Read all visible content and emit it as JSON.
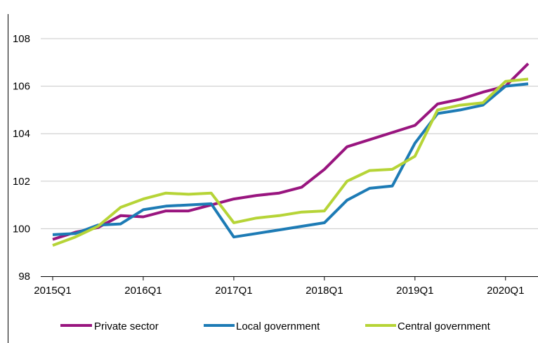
{
  "chart_data": {
    "type": "line",
    "title": "",
    "xlabel": "",
    "ylabel": "",
    "ylim": [
      98,
      108
    ],
    "yticks": [
      "98",
      "100",
      "102",
      "104",
      "106",
      "108"
    ],
    "ytick_values": [
      98,
      100,
      102,
      104,
      106,
      108
    ],
    "grid": true,
    "legend_position": "bottom",
    "x": [
      "2015Q1",
      "2015Q2",
      "2015Q3",
      "2015Q4",
      "2016Q1",
      "2016Q2",
      "2016Q3",
      "2016Q4",
      "2017Q1",
      "2017Q2",
      "2017Q3",
      "2017Q4",
      "2018Q1",
      "2018Q2",
      "2018Q3",
      "2018Q4",
      "2019Q1",
      "2019Q2",
      "2019Q3",
      "2019Q4",
      "2020Q1",
      "2020Q2"
    ],
    "xtick_labels": [
      {
        "label": "2015Q1",
        "index": 0
      },
      {
        "label": "2016Q1",
        "index": 4
      },
      {
        "label": "2017Q1",
        "index": 8
      },
      {
        "label": "2018Q1",
        "index": 12
      },
      {
        "label": "2019Q1",
        "index": 16
      },
      {
        "label": "2020Q1",
        "index": 20
      }
    ],
    "series": [
      {
        "name": "Private sector",
        "color": "#99157f",
        "values": [
          99.55,
          99.85,
          100.05,
          100.55,
          100.5,
          100.75,
          100.75,
          101.0,
          101.25,
          101.4,
          101.5,
          101.75,
          102.5,
          103.45,
          103.75,
          104.05,
          104.35,
          105.25,
          105.45,
          105.75,
          106.0,
          106.95
        ]
      },
      {
        "name": "Local government",
        "color": "#1d7bb5",
        "values": [
          99.75,
          99.8,
          100.15,
          100.2,
          100.8,
          100.95,
          101.0,
          101.05,
          99.65,
          99.8,
          99.95,
          100.1,
          100.25,
          101.2,
          101.7,
          101.8,
          103.6,
          104.85,
          105.0,
          105.2,
          106.0,
          106.1
        ]
      },
      {
        "name": "Central government",
        "color": "#b6d437",
        "values": [
          99.3,
          99.65,
          100.1,
          100.9,
          101.25,
          101.5,
          101.45,
          101.5,
          100.25,
          100.45,
          100.55,
          100.7,
          100.75,
          102.0,
          102.45,
          102.5,
          103.05,
          105.0,
          105.2,
          105.3,
          106.2,
          106.3
        ]
      }
    ]
  }
}
